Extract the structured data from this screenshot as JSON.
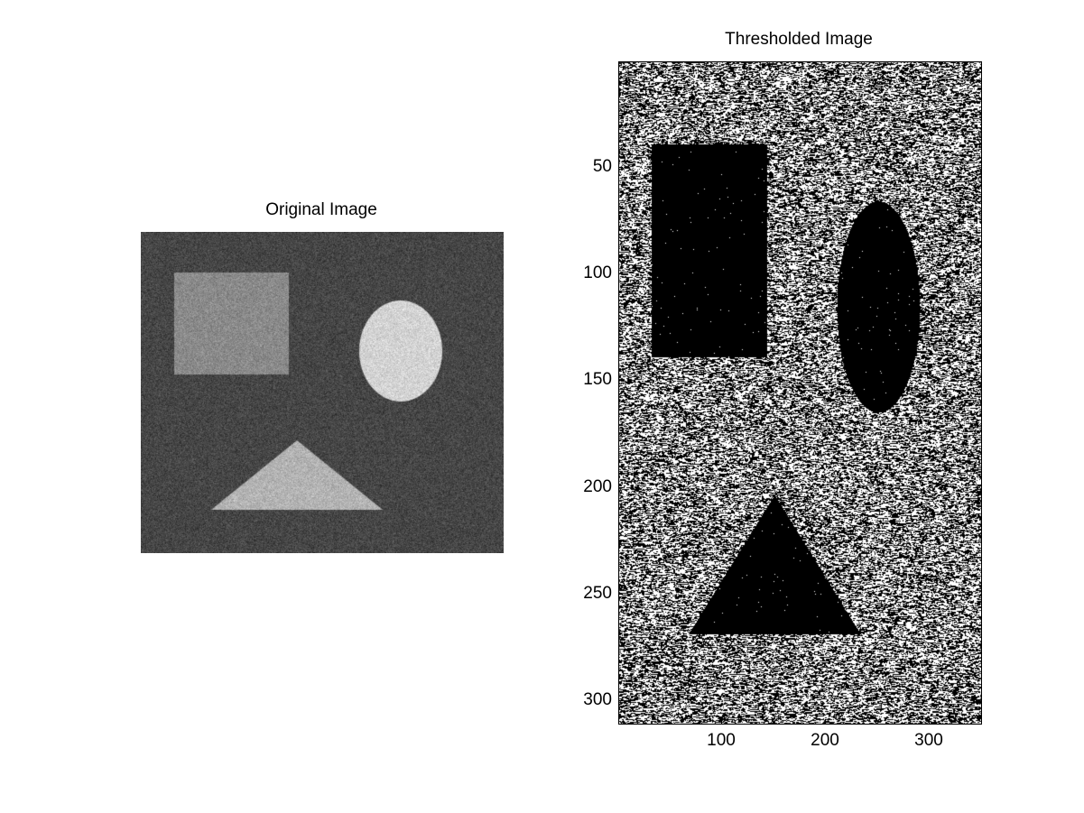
{
  "left_panel": {
    "title": "Original Image",
    "colors": {
      "background": "#464646",
      "rectangle": "#8a8a8a",
      "ellipse": "#d3d3d3",
      "triangle": "#b3b3b3"
    }
  },
  "right_panel": {
    "title": "Thresholded Image",
    "y_ticks": [
      "50",
      "100",
      "150",
      "200",
      "250",
      "300"
    ],
    "x_ticks": [
      "100",
      "200",
      "300"
    ],
    "colors": {
      "foreground": "#000000",
      "background": "#ffffff"
    }
  }
}
